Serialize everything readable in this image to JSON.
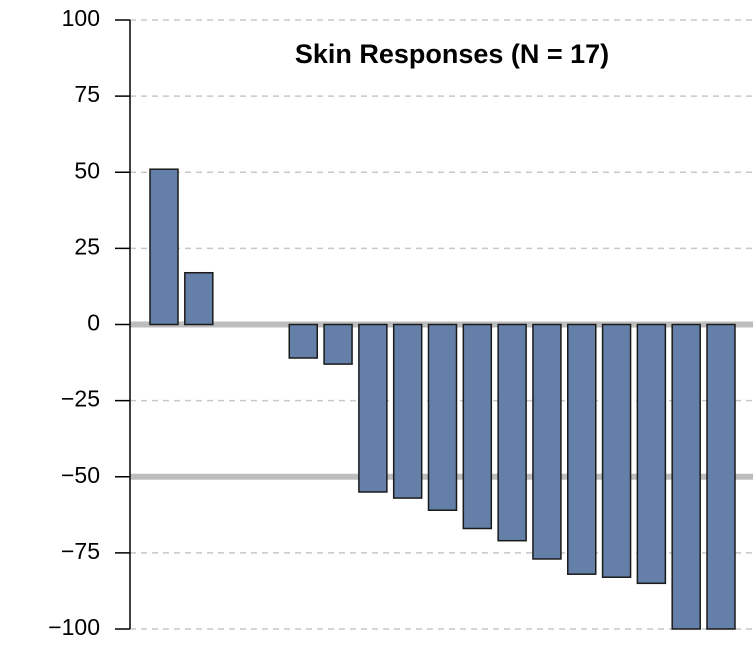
{
  "chart_data": {
    "type": "bar",
    "title": "Skin Responses (N = 17)",
    "values": [
      51,
      17,
      0,
      0,
      -11,
      -13,
      -55,
      -57,
      -61,
      -67,
      -71,
      -77,
      -82,
      -83,
      -85,
      -100,
      -100
    ],
    "color": "#6480a8",
    "ylim": [
      -100,
      100
    ],
    "yticks": [
      {
        "value": -100,
        "label": "−100"
      },
      {
        "value": -75,
        "label": "−75"
      },
      {
        "value": -50,
        "label": "−50"
      },
      {
        "value": -25,
        "label": "−25"
      },
      0,
      25,
      50,
      75,
      100
    ],
    "grid": true,
    "reference_lines": [
      0,
      -50
    ]
  }
}
